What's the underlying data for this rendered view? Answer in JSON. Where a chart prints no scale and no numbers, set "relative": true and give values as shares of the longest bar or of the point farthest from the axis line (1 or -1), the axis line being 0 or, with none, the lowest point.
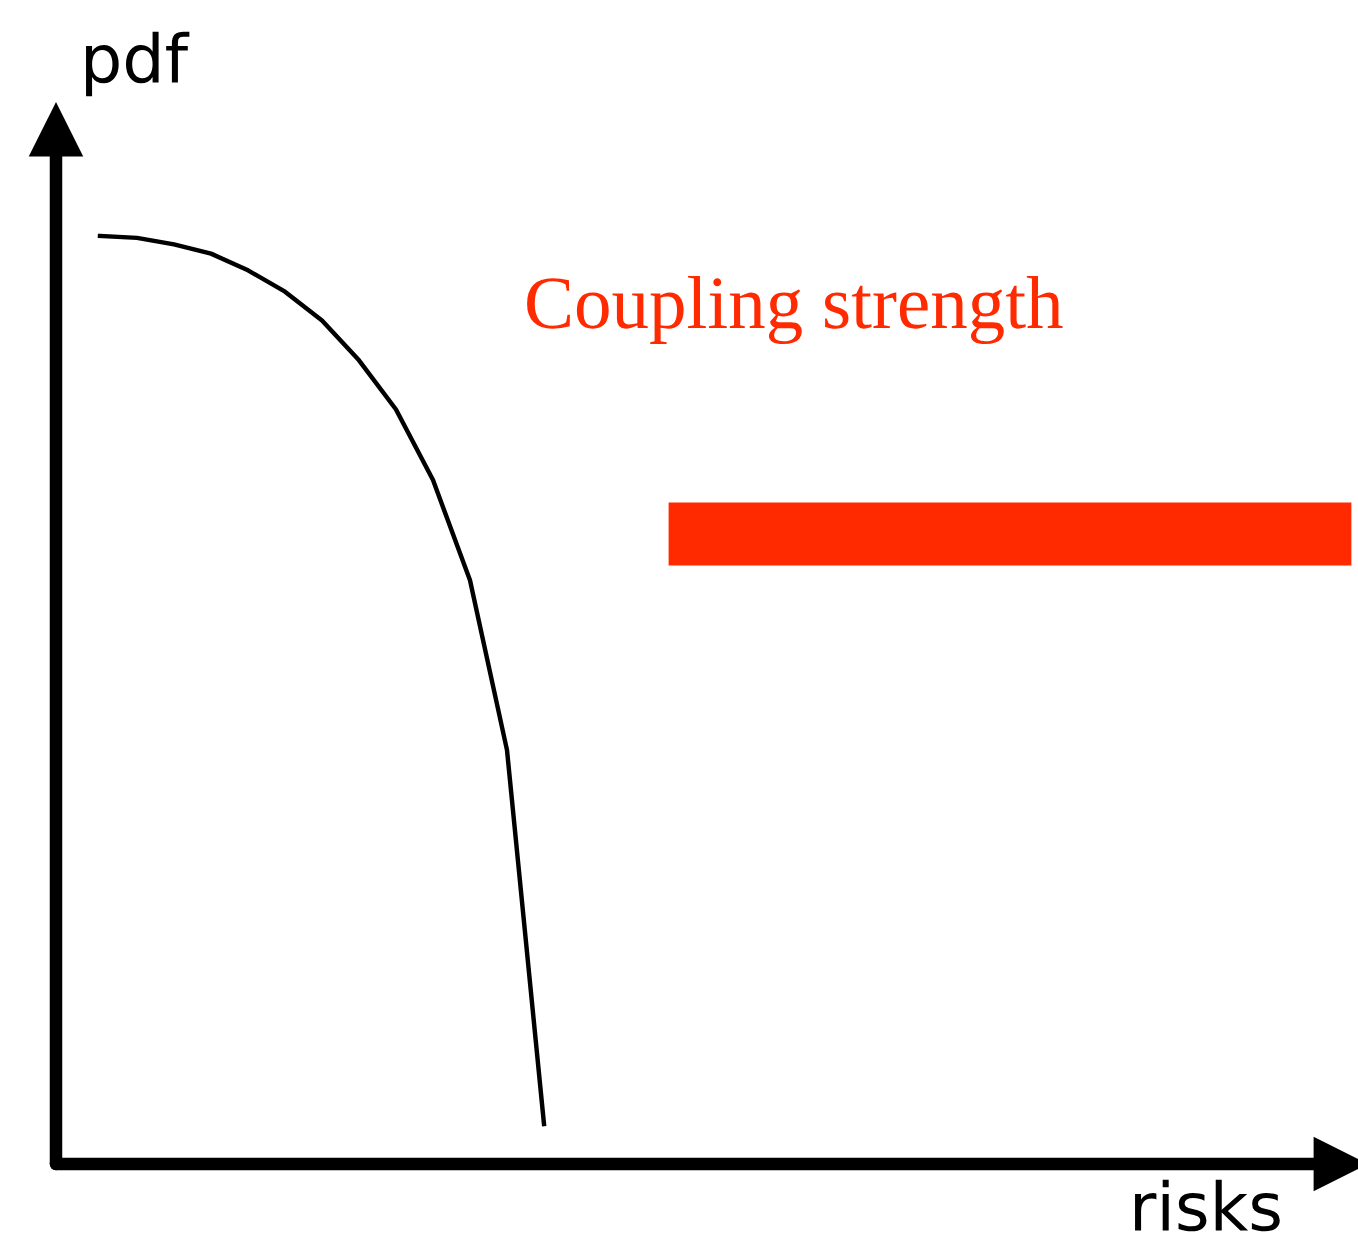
{
  "chart_data": {
    "type": "line",
    "ylabel": "pdf",
    "relative": true,
    "categories": [
      null,
      null,
      null,
      null,
      null,
      null,
      null,
      null,
      null,
      null,
      null,
      null,
      null
    ],
    "series": [
      {
        "color": "#000000",
        "values": [
          1.0,
          0.998,
          0.991,
          0.981,
          0.963,
          0.94,
          0.909,
          0.866,
          0.813,
          0.737,
          0.629,
          0.446,
          0.043
        ]
      }
    ],
    "annotations": [
      "Coupling strength",
      "risks"
    ]
  }
}
